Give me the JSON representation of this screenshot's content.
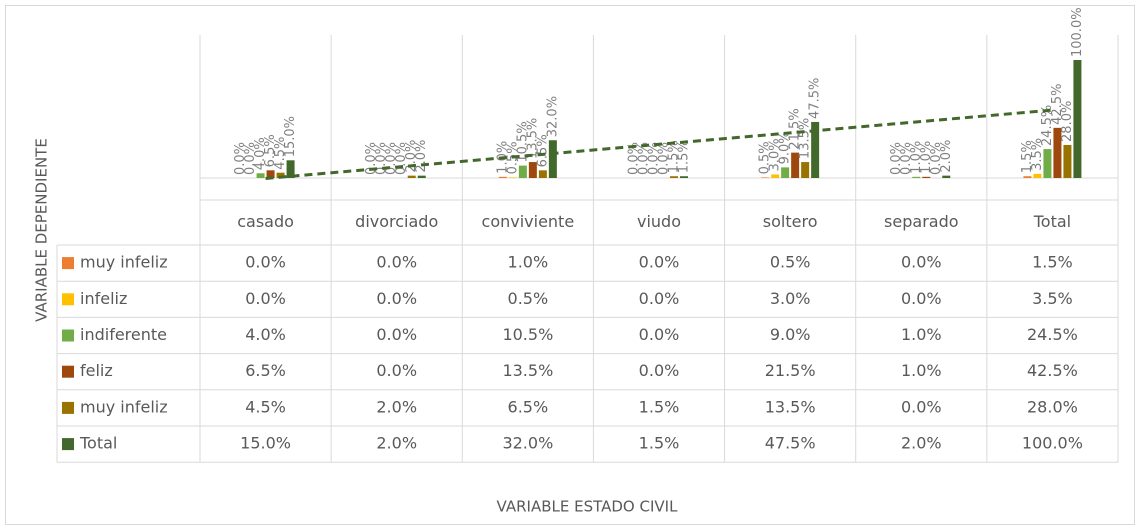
{
  "chart_data": {
    "type": "bar",
    "y_axis_label": "VARIABLE DEPENDIENTE",
    "x_axis_label": "VARIABLE ESTADO CIVIL",
    "categories": [
      "casado",
      "divorciado",
      "conviviente",
      "viudo",
      "soltero",
      "separado",
      "Total"
    ],
    "ylim": [
      0,
      100
    ],
    "data_table": true,
    "series": [
      {
        "name": "muy infeliz",
        "color": "#ED7D31",
        "values": [
          0,
          0,
          1,
          0,
          0.5,
          0,
          1.5
        ],
        "value_labels": [
          "0.0%",
          "0.0%",
          "1.0%",
          "0.0%",
          "0.5%",
          "0.0%",
          "1.5%"
        ]
      },
      {
        "name": "infeliz",
        "color": "#FFC000",
        "values": [
          0,
          0,
          0.5,
          0,
          3,
          0,
          3.5
        ],
        "value_labels": [
          "0.0%",
          "0.0%",
          "0.5%",
          "0.0%",
          "3.0%",
          "0.0%",
          "3.5%"
        ]
      },
      {
        "name": "indiferente",
        "color": "#70AD47",
        "values": [
          4,
          0,
          10.5,
          0,
          9,
          1,
          24.5
        ],
        "value_labels": [
          "4.0%",
          "0.0%",
          "10.5%",
          "0.0%",
          "9.0%",
          "1.0%",
          "24.5%"
        ]
      },
      {
        "name": "feliz",
        "color": "#9E480E",
        "values": [
          6.5,
          0,
          13.5,
          0,
          21.5,
          1,
          42.5
        ],
        "value_labels": [
          "6.5%",
          "0.0%",
          "13.5%",
          "0.0%",
          "21.5%",
          "1.0%",
          "42.5%"
        ]
      },
      {
        "name": "muy infeliz",
        "color": "#997300",
        "values": [
          4.5,
          2,
          6.5,
          1.5,
          13.5,
          0,
          28
        ],
        "value_labels": [
          "4.5%",
          "2.0%",
          "6.5%",
          "1.5%",
          "13.5%",
          "0.0%",
          "28.0%"
        ]
      },
      {
        "name": "Total",
        "color": "#43682B",
        "values": [
          15,
          2,
          32,
          1.5,
          47.5,
          2,
          100
        ],
        "value_labels": [
          "15.0%",
          "2.0%",
          "32.0%",
          "1.5%",
          "47.5%",
          "2.0%",
          "100.0%"
        ],
        "trendline": "linear"
      }
    ]
  }
}
